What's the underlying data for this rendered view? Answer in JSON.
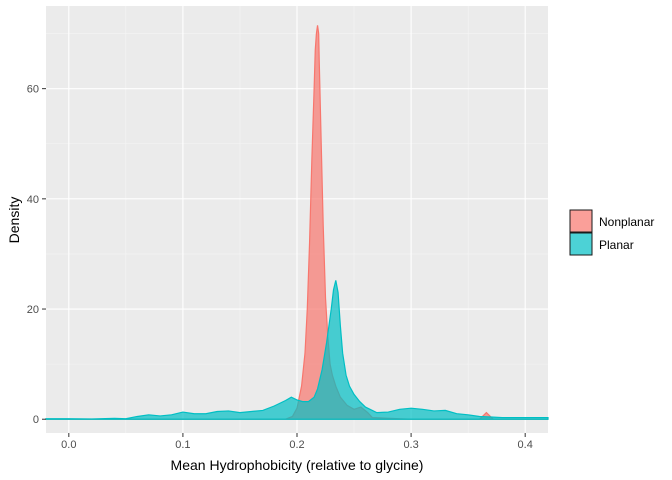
{
  "chart_data": {
    "type": "area",
    "subtype": "density",
    "xlabel": "Mean Hydrophobicity (relative to glycine)",
    "ylabel": "Density",
    "xlim": [
      -0.02,
      0.42
    ],
    "ylim": [
      -2.5,
      75
    ],
    "x_ticks": [
      0.0,
      0.1,
      0.2,
      0.3,
      0.4
    ],
    "x_tick_labels": [
      "0.0",
      "0.1",
      "0.2",
      "0.3",
      "0.4"
    ],
    "y_ticks": [
      0,
      20,
      40,
      60
    ],
    "y_tick_labels": [
      "0",
      "20",
      "40",
      "60"
    ],
    "grid": true,
    "legend_position": "right",
    "series": [
      {
        "name": "Nonplanar",
        "fill": "#F8766D",
        "stroke": "#F8766D",
        "x": [
          -0.02,
          0.19,
          0.196,
          0.2,
          0.204,
          0.207,
          0.209,
          0.211,
          0.213,
          0.215,
          0.216,
          0.217,
          0.218,
          0.219,
          0.2195,
          0.221,
          0.223,
          0.225,
          0.227,
          0.229,
          0.231,
          0.234,
          0.238,
          0.244,
          0.25,
          0.256,
          0.262,
          0.266,
          0.3,
          0.36,
          0.364,
          0.366,
          0.368,
          0.372,
          0.42
        ],
        "y": [
          0,
          0,
          0.5,
          2,
          6,
          12,
          20,
          32,
          47,
          60,
          67,
          70,
          71.5,
          70,
          65,
          52,
          35,
          22,
          15,
          10,
          8,
          6,
          4,
          2.5,
          1.8,
          2.2,
          1.2,
          0.3,
          0,
          0,
          0.8,
          1.2,
          0.8,
          0,
          0
        ]
      },
      {
        "name": "Planar",
        "fill": "#00BFC4",
        "stroke": "#00BFC4",
        "x": [
          -0.02,
          0.0,
          0.02,
          0.04,
          0.05,
          0.06,
          0.07,
          0.08,
          0.09,
          0.1,
          0.11,
          0.12,
          0.13,
          0.14,
          0.15,
          0.16,
          0.17,
          0.18,
          0.19,
          0.195,
          0.2,
          0.205,
          0.21,
          0.215,
          0.218,
          0.222,
          0.226,
          0.23,
          0.232,
          0.234,
          0.236,
          0.238,
          0.24,
          0.243,
          0.246,
          0.25,
          0.255,
          0.26,
          0.27,
          0.28,
          0.29,
          0.3,
          0.31,
          0.32,
          0.33,
          0.34,
          0.35,
          0.36,
          0.37,
          0.38,
          0.4,
          0.42
        ],
        "y": [
          0.1,
          0.1,
          0.05,
          0.15,
          0.1,
          0.5,
          0.8,
          0.6,
          0.8,
          1.3,
          1.0,
          1.0,
          1.4,
          1.5,
          1.2,
          1.4,
          1.6,
          2.4,
          3.4,
          4.0,
          3.5,
          3.2,
          3.2,
          4.0,
          5.5,
          9.0,
          14.0,
          20.0,
          23.5,
          25.2,
          23.0,
          17.0,
          12.0,
          8.0,
          6.0,
          4.5,
          3.2,
          2.2,
          1.2,
          1.3,
          1.8,
          2.0,
          1.8,
          1.5,
          1.6,
          1.0,
          0.8,
          0.5,
          0.4,
          0.3,
          0.3,
          0.3
        ]
      }
    ]
  }
}
